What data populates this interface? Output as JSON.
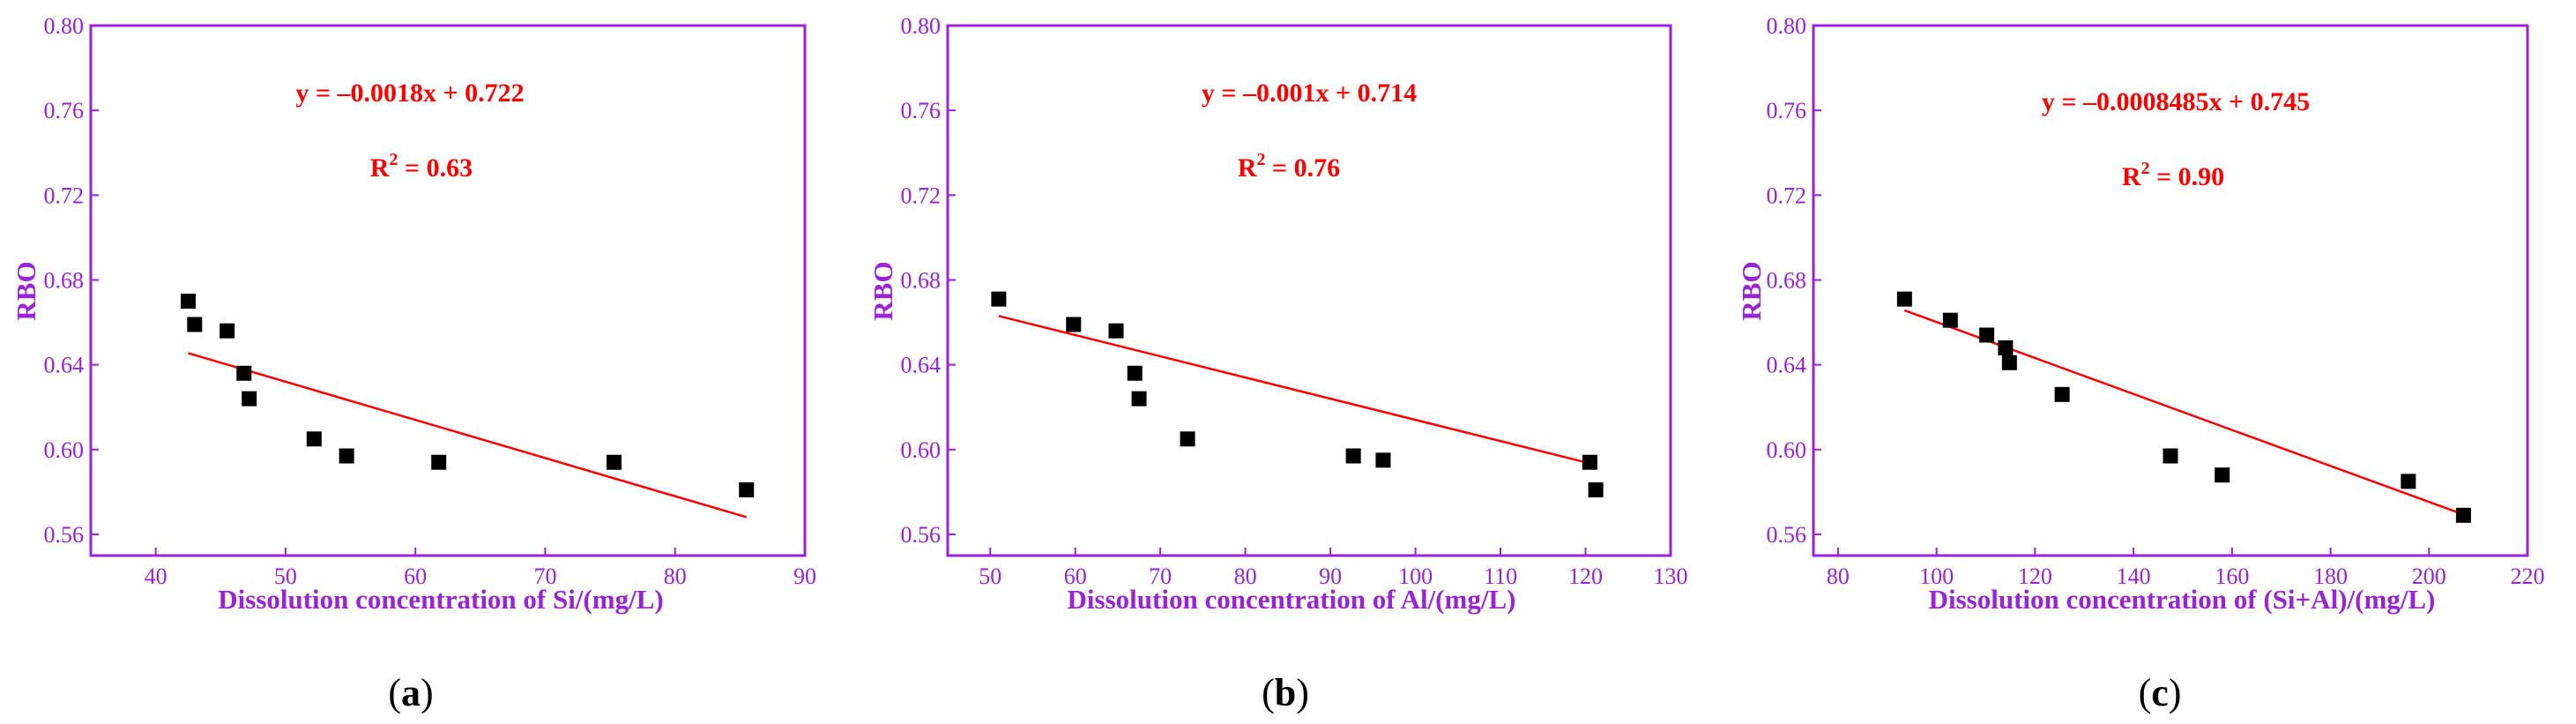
{
  "colors": {
    "axis": "#9b22d6",
    "fit_line": "#ff0000",
    "points": "#000000",
    "equation": "#ff0000"
  },
  "chart_data": [
    {
      "type": "scatter",
      "panel_label": {
        "open": "(",
        "letter": "a",
        "close": ")"
      },
      "xlabel": "Dissolution concentration of Si/(mg/L)",
      "ylabel": "RBO",
      "xlim": [
        35,
        90
      ],
      "ylim": [
        0.55,
        0.8
      ],
      "xticks": [
        40,
        50,
        60,
        70,
        80,
        90
      ],
      "yticks": [
        0.56,
        0.6,
        0.64,
        0.68,
        0.72,
        0.76,
        0.8
      ],
      "points": [
        {
          "x": 42.5,
          "y": 0.67
        },
        {
          "x": 43.0,
          "y": 0.659
        },
        {
          "x": 45.5,
          "y": 0.656
        },
        {
          "x": 46.8,
          "y": 0.636
        },
        {
          "x": 47.2,
          "y": 0.624
        },
        {
          "x": 52.2,
          "y": 0.605
        },
        {
          "x": 54.7,
          "y": 0.597
        },
        {
          "x": 61.8,
          "y": 0.594
        },
        {
          "x": 75.3,
          "y": 0.594
        },
        {
          "x": 85.5,
          "y": 0.581
        }
      ],
      "fit": {
        "slope": -0.0018,
        "intercept": 0.722,
        "x_start": 42.5,
        "x_end": 85.5
      },
      "equation": "y = –0.0018x + 0.722",
      "r2_label": "R",
      "r2_exp": "2",
      "r2_value": " = 0.63"
    },
    {
      "type": "scatter",
      "panel_label": {
        "open": "(",
        "letter": "b",
        "close": ")"
      },
      "xlabel": "Dissolution concentration of Al/(mg/L)",
      "ylabel": "RBO",
      "xlim": [
        45,
        130
      ],
      "ylim": [
        0.55,
        0.8
      ],
      "xticks": [
        50,
        60,
        70,
        80,
        90,
        100,
        110,
        120,
        130
      ],
      "yticks": [
        0.56,
        0.6,
        0.64,
        0.68,
        0.72,
        0.76,
        0.8
      ],
      "points": [
        {
          "x": 51.0,
          "y": 0.671
        },
        {
          "x": 59.8,
          "y": 0.659
        },
        {
          "x": 64.8,
          "y": 0.656
        },
        {
          "x": 67.0,
          "y": 0.636
        },
        {
          "x": 67.5,
          "y": 0.624
        },
        {
          "x": 73.2,
          "y": 0.605
        },
        {
          "x": 92.7,
          "y": 0.597
        },
        {
          "x": 96.2,
          "y": 0.595
        },
        {
          "x": 120.5,
          "y": 0.594
        },
        {
          "x": 121.2,
          "y": 0.581
        }
      ],
      "fit": {
        "slope": -0.001,
        "intercept": 0.714,
        "x_start": 51.0,
        "x_end": 121.0
      },
      "equation": "y = –0.001x + 0.714",
      "r2_label": "R",
      "r2_exp": "2",
      "r2_value": " = 0.76"
    },
    {
      "type": "scatter",
      "panel_label": {
        "open": "(",
        "letter": "c",
        "close": ")"
      },
      "xlabel": "Dissolution concentration of (Si+Al)/(mg/L)",
      "ylabel": "RBO",
      "xlim": [
        75,
        220
      ],
      "ylim": [
        0.55,
        0.8
      ],
      "xticks": [
        80,
        100,
        120,
        140,
        160,
        180,
        200,
        220
      ],
      "yticks": [
        0.56,
        0.6,
        0.64,
        0.68,
        0.72,
        0.76,
        0.8
      ],
      "points": [
        {
          "x": 93.5,
          "y": 0.671
        },
        {
          "x": 102.8,
          "y": 0.661
        },
        {
          "x": 110.2,
          "y": 0.654
        },
        {
          "x": 114.0,
          "y": 0.648
        },
        {
          "x": 114.8,
          "y": 0.641
        },
        {
          "x": 125.5,
          "y": 0.626
        },
        {
          "x": 147.5,
          "y": 0.597
        },
        {
          "x": 158.0,
          "y": 0.588
        },
        {
          "x": 195.8,
          "y": 0.585
        },
        {
          "x": 207.0,
          "y": 0.569
        }
      ],
      "fit": {
        "slope": -0.0008485,
        "intercept": 0.745,
        "x_start": 93.5,
        "x_end": 207.0
      },
      "equation": "y = –0.0008485x + 0.745",
      "r2_label": "R",
      "r2_exp": "2",
      "r2_value": " = 0.90"
    }
  ]
}
